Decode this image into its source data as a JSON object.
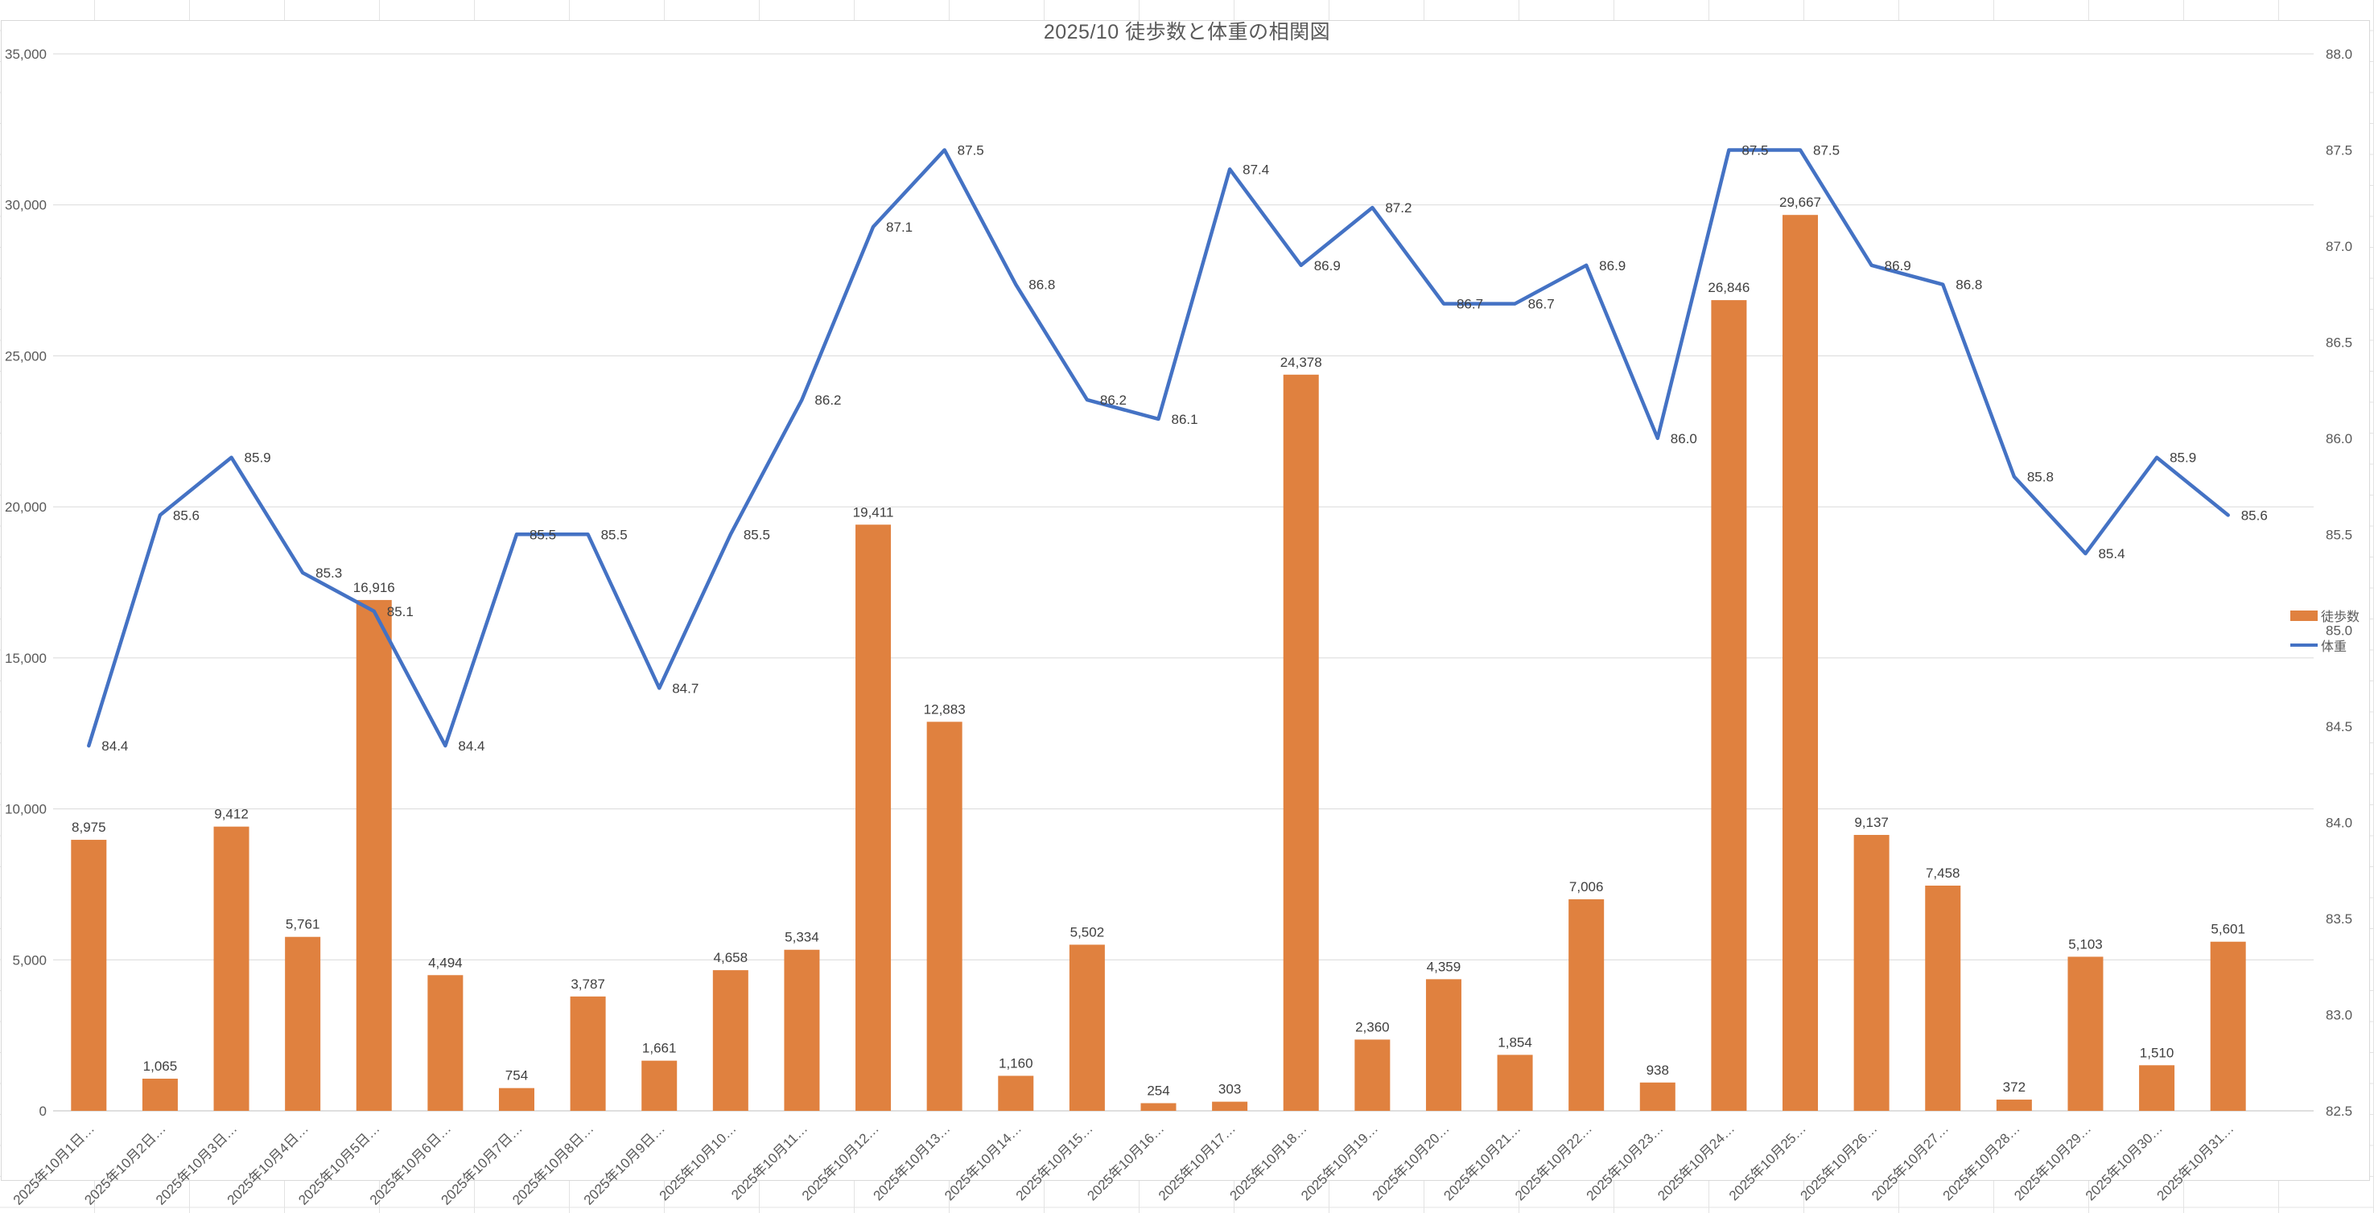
{
  "title": "2025/10 徒歩数と体重の相関図",
  "legend": [
    {
      "label": "徒歩数",
      "type": "bar",
      "color": "#E0813F"
    },
    {
      "label": "体重",
      "type": "line",
      "color": "#4472C4"
    }
  ],
  "colors": {
    "bar": "#E0813F",
    "line": "#4472C4",
    "gridline": "#D9D9D9",
    "axis_line": "#BFBFBF",
    "axis_text": "#595959",
    "value_text": "#404040"
  },
  "chart_data": {
    "type": "bar",
    "subtype": "combo-bar-line-dual-axis",
    "title": "2025/10 徒歩数と体重の相関図",
    "categories": [
      "2025年10月1日…",
      "2025年10月2日…",
      "2025年10月3日…",
      "2025年10月4日…",
      "2025年10月5日…",
      "2025年10月6日…",
      "2025年10月7日…",
      "2025年10月8日…",
      "2025年10月9日…",
      "2025年10月10…",
      "2025年10月11…",
      "2025年10月12…",
      "2025年10月13…",
      "2025年10月14…",
      "2025年10月15…",
      "2025年10月16…",
      "2025年10月17…",
      "2025年10月18…",
      "2025年10月19…",
      "2025年10月20…",
      "2025年10月21…",
      "2025年10月22…",
      "2025年10月23…",
      "2025年10月24…",
      "2025年10月25…",
      "2025年10月26…",
      "2025年10月27…",
      "2025年10月28…",
      "2025年10月29…",
      "2025年10月30…",
      "2025年10月31…"
    ],
    "series": [
      {
        "name": "徒歩数",
        "type": "bar",
        "axis": "left",
        "values": [
          8975,
          1065,
          9412,
          5761,
          16916,
          4494,
          754,
          3787,
          1661,
          4658,
          5334,
          19411,
          12883,
          1160,
          5502,
          254,
          303,
          24378,
          2360,
          4359,
          1854,
          7006,
          938,
          26846,
          29667,
          9137,
          7458,
          372,
          5103,
          1510,
          5601
        ]
      },
      {
        "name": "体重",
        "type": "line",
        "axis": "right",
        "values": [
          84.4,
          85.6,
          85.9,
          85.3,
          85.1,
          84.4,
          85.5,
          85.5,
          84.7,
          85.5,
          86.2,
          87.1,
          87.5,
          86.8,
          86.2,
          86.1,
          87.4,
          86.9,
          87.2,
          86.7,
          86.7,
          86.9,
          86.0,
          87.5,
          87.5,
          86.9,
          86.8,
          85.8,
          85.4,
          85.9,
          85.6
        ]
      }
    ],
    "left_axis": {
      "min": 0,
      "max": 35000,
      "step": 5000,
      "tick_labels": [
        "0",
        "5,000",
        "10,000",
        "15,000",
        "20,000",
        "25,000",
        "30,000",
        "35,000"
      ]
    },
    "right_axis": {
      "min": 82.5,
      "max": 88.0,
      "step": 0.5,
      "tick_labels": [
        "82.5",
        "83.0",
        "83.5",
        "84.0",
        "84.5",
        "85.0",
        "85.5",
        "86.0",
        "86.5",
        "87.0",
        "87.5",
        "88.0"
      ]
    },
    "grid": true,
    "legend_position": "right"
  }
}
